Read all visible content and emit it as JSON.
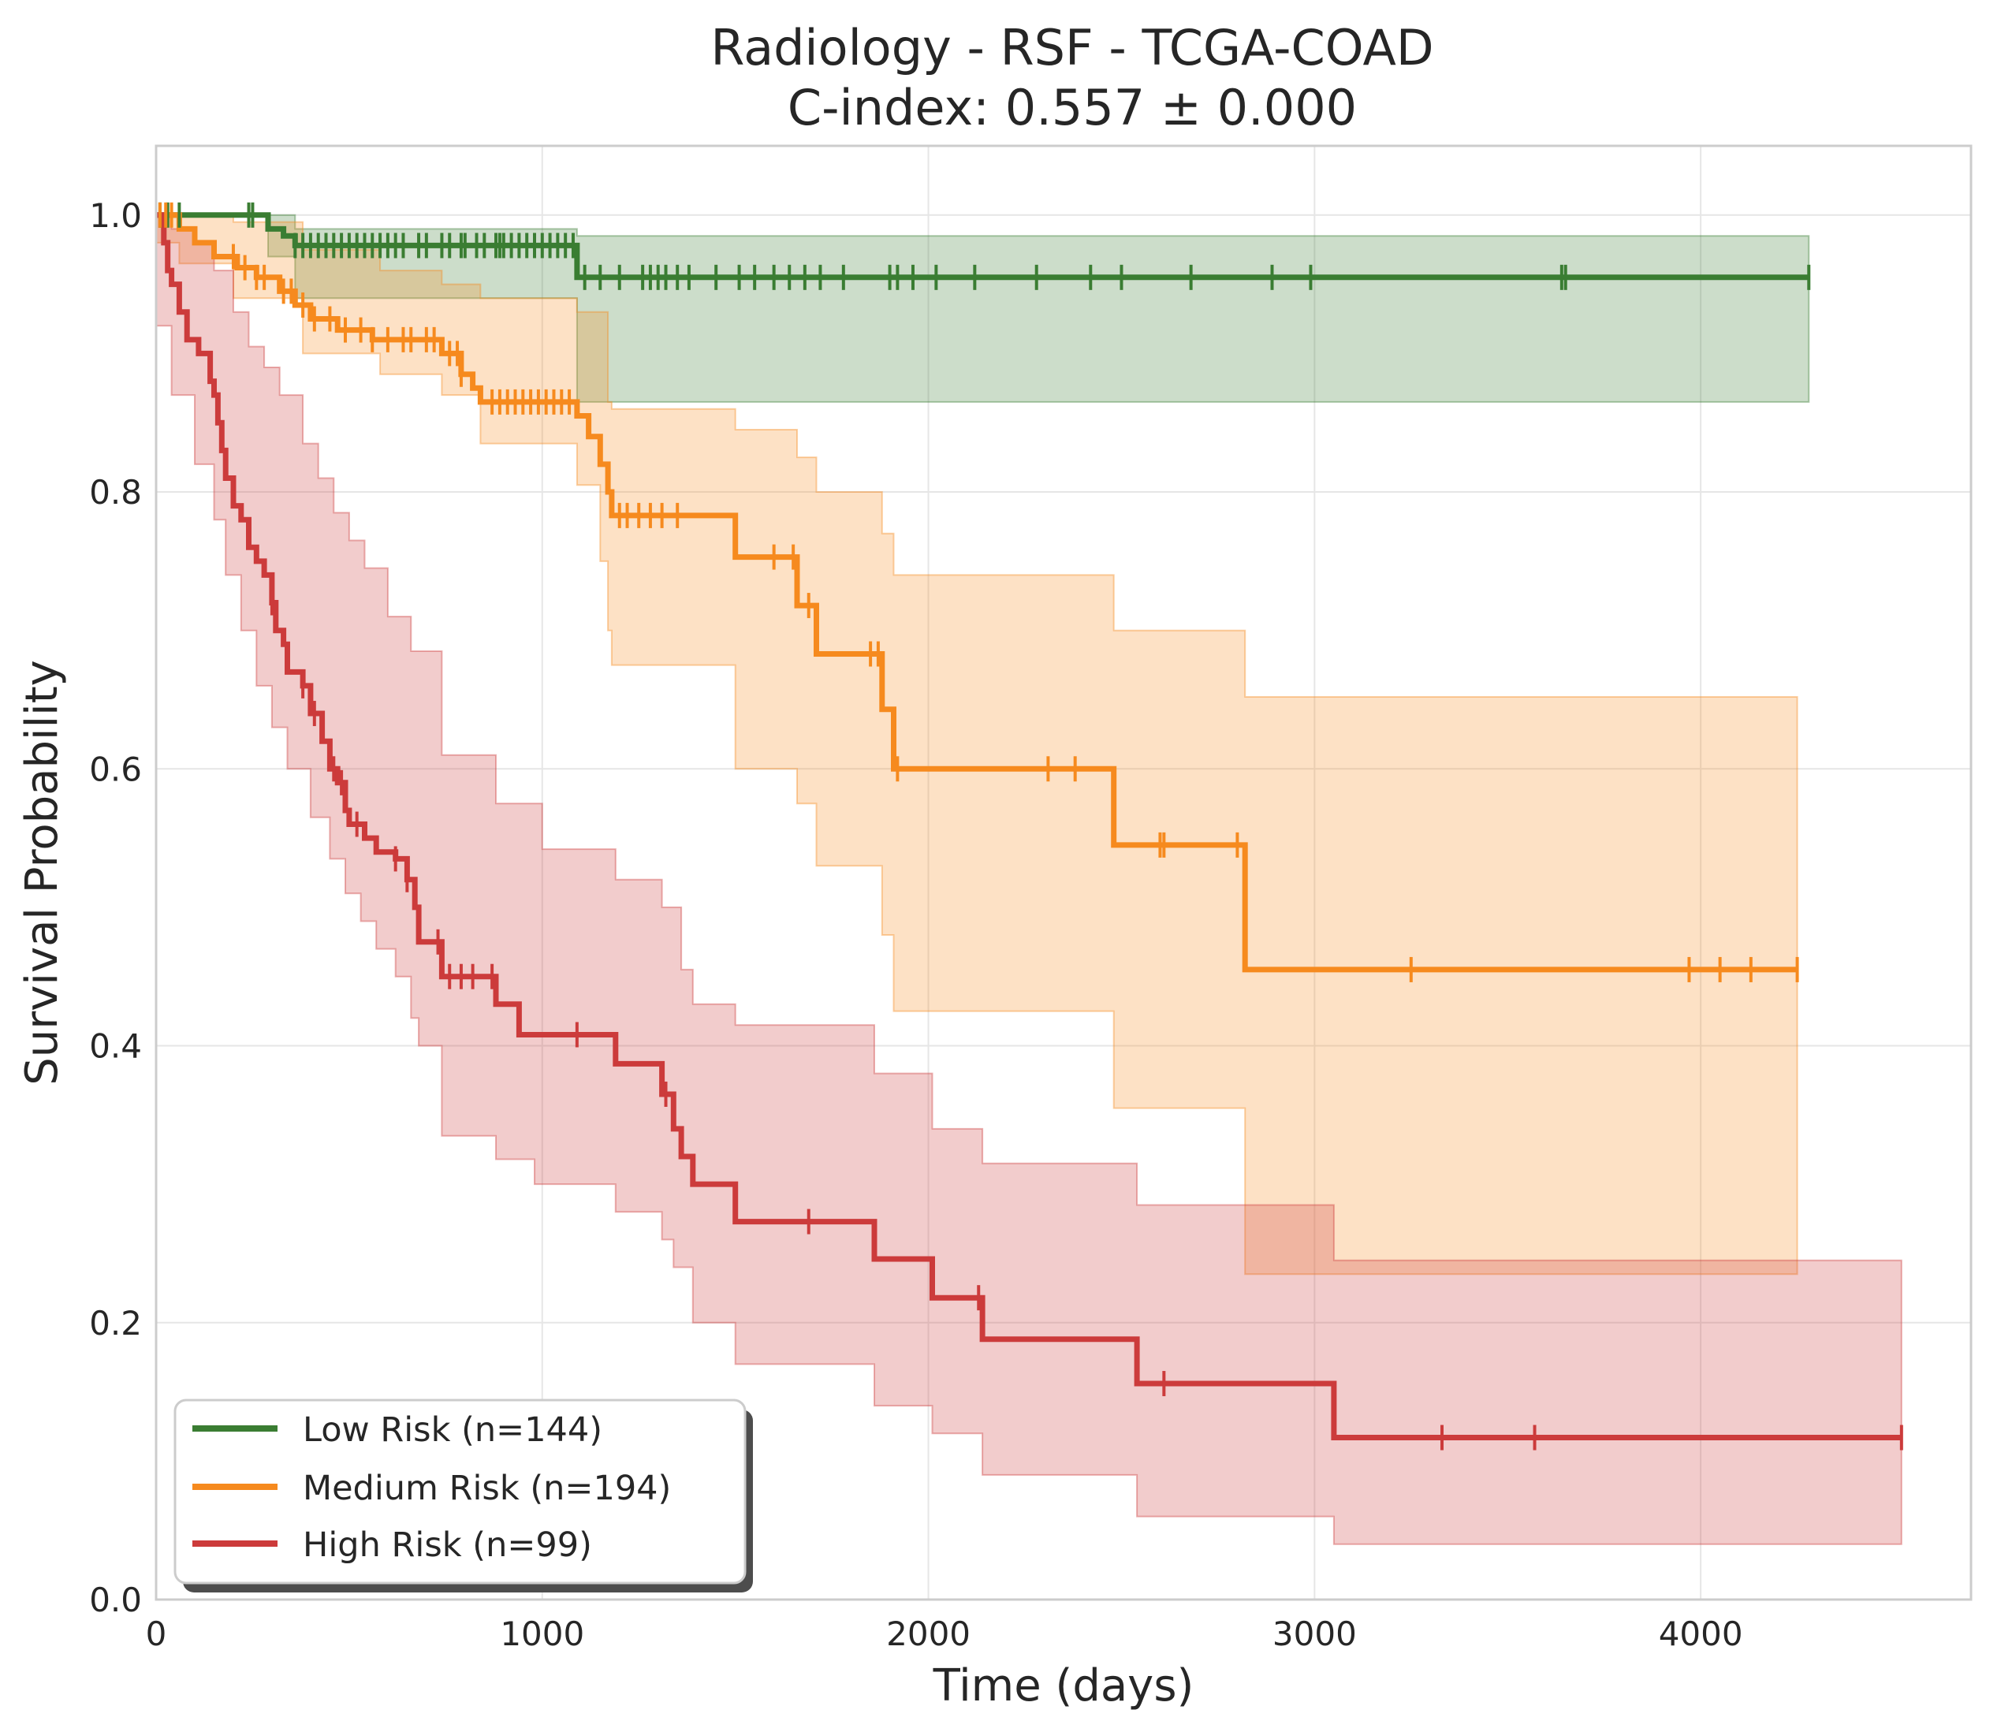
{
  "chart_data": {
    "type": "line",
    "step": "post",
    "title_lines": [
      "Radiology - RSF - TCGA-COAD",
      "C-index: 0.557 ± 0.000"
    ],
    "xlabel": "Time (days)",
    "ylabel": "Survival Probability",
    "xlim": [
      0,
      4700
    ],
    "ylim": [
      0,
      1.05
    ],
    "x_ticks": [
      0,
      1000,
      2000,
      3000,
      4000
    ],
    "x_tick_labels": [
      "0",
      "1000",
      "2000",
      "3000",
      "4000"
    ],
    "y_ticks": [
      0,
      0.2,
      0.4,
      0.6,
      0.8,
      1.0
    ],
    "y_tick_labels": [
      "0.0",
      "0.2",
      "0.4",
      "0.6",
      "0.8",
      "1.0"
    ],
    "grid": true,
    "legend_position": "lower-left",
    "series": [
      {
        "name": "Low Risk (n=144)",
        "color": "#3a7d32",
        "steps": [
          [
            0,
            1.0
          ],
          [
            290,
            0.99
          ],
          [
            330,
            0.985
          ],
          [
            360,
            0.978
          ],
          [
            1090,
            0.955
          ],
          [
            4280,
            0.955
          ]
        ],
        "ci_lower": [
          [
            0,
            1.0
          ],
          [
            290,
            0.97
          ],
          [
            360,
            0.94
          ],
          [
            1090,
            0.865
          ],
          [
            4280,
            0.865
          ]
        ],
        "ci_upper": [
          [
            0,
            1.0
          ],
          [
            360,
            0.99
          ],
          [
            1090,
            0.985
          ],
          [
            4280,
            0.985
          ]
        ],
        "censor_times": [
          10,
          30,
          60,
          240,
          250,
          360,
          380,
          400,
          420,
          440,
          460,
          480,
          500,
          520,
          540,
          560,
          580,
          600,
          620,
          640,
          680,
          700,
          740,
          760,
          790,
          800,
          830,
          850,
          880,
          890,
          900,
          920,
          940,
          960,
          980,
          1000,
          1020,
          1040,
          1060,
          1080,
          1110,
          1150,
          1200,
          1260,
          1280,
          1300,
          1320,
          1350,
          1380,
          1450,
          1510,
          1550,
          1600,
          1640,
          1680,
          1720,
          1780,
          1900,
          1920,
          1960,
          2020,
          2120,
          2280,
          2420,
          2500,
          2680,
          2890,
          2990,
          3640,
          3650,
          4280
        ]
      },
      {
        "name": "Medium Risk (n=194)",
        "color": "#f68a1e",
        "steps": [
          [
            0,
            1.0
          ],
          [
            60,
            0.99
          ],
          [
            100,
            0.98
          ],
          [
            150,
            0.97
          ],
          [
            210,
            0.962
          ],
          [
            260,
            0.955
          ],
          [
            320,
            0.945
          ],
          [
            360,
            0.935
          ],
          [
            400,
            0.925
          ],
          [
            470,
            0.917
          ],
          [
            560,
            0.91
          ],
          [
            740,
            0.9
          ],
          [
            790,
            0.885
          ],
          [
            820,
            0.875
          ],
          [
            840,
            0.865
          ],
          [
            1090,
            0.855
          ],
          [
            1120,
            0.84
          ],
          [
            1150,
            0.82
          ],
          [
            1170,
            0.8
          ],
          [
            1180,
            0.783
          ],
          [
            1500,
            0.753
          ],
          [
            1660,
            0.718
          ],
          [
            1710,
            0.683
          ],
          [
            1880,
            0.643
          ],
          [
            1910,
            0.6
          ],
          [
            2480,
            0.545
          ],
          [
            2820,
            0.455
          ],
          [
            4250,
            0.455
          ]
        ],
        "ci_lower": [
          [
            0,
            0.98
          ],
          [
            60,
            0.965
          ],
          [
            200,
            0.94
          ],
          [
            380,
            0.9
          ],
          [
            580,
            0.885
          ],
          [
            740,
            0.87
          ],
          [
            840,
            0.835
          ],
          [
            1090,
            0.805
          ],
          [
            1150,
            0.75
          ],
          [
            1170,
            0.7
          ],
          [
            1180,
            0.675
          ],
          [
            1500,
            0.6
          ],
          [
            1660,
            0.575
          ],
          [
            1710,
            0.53
          ],
          [
            1880,
            0.48
          ],
          [
            1910,
            0.425
          ],
          [
            2480,
            0.355
          ],
          [
            2820,
            0.235
          ],
          [
            4250,
            0.235
          ]
        ],
        "ci_upper": [
          [
            0,
            1.0
          ],
          [
            200,
            0.995
          ],
          [
            380,
            0.975
          ],
          [
            580,
            0.96
          ],
          [
            740,
            0.95
          ],
          [
            840,
            0.94
          ],
          [
            1090,
            0.93
          ],
          [
            1170,
            0.865
          ],
          [
            1180,
            0.86
          ],
          [
            1500,
            0.845
          ],
          [
            1660,
            0.825
          ],
          [
            1710,
            0.8
          ],
          [
            1880,
            0.77
          ],
          [
            1910,
            0.74
          ],
          [
            2480,
            0.7
          ],
          [
            2820,
            0.652
          ],
          [
            4250,
            0.652
          ]
        ],
        "censor_times": [
          10,
          25,
          40,
          200,
          230,
          260,
          280,
          330,
          350,
          380,
          410,
          450,
          490,
          530,
          560,
          600,
          640,
          660,
          700,
          720,
          760,
          780,
          790,
          870,
          890,
          910,
          930,
          950,
          970,
          990,
          1010,
          1030,
          1050,
          1070,
          1200,
          1220,
          1250,
          1280,
          1310,
          1350,
          1600,
          1650,
          1690,
          1850,
          1870,
          1920,
          2310,
          2380,
          2600,
          2610,
          2800,
          3250,
          3970,
          4050,
          4130,
          4250
        ]
      },
      {
        "name": "High Risk (n=99)",
        "color": "#cc3b3b",
        "steps": [
          [
            0,
            1.0
          ],
          [
            20,
            0.98
          ],
          [
            30,
            0.96
          ],
          [
            40,
            0.95
          ],
          [
            60,
            0.93
          ],
          [
            80,
            0.91
          ],
          [
            110,
            0.9
          ],
          [
            140,
            0.88
          ],
          [
            150,
            0.87
          ],
          [
            160,
            0.85
          ],
          [
            170,
            0.83
          ],
          [
            180,
            0.81
          ],
          [
            200,
            0.79
          ],
          [
            220,
            0.78
          ],
          [
            240,
            0.76
          ],
          [
            260,
            0.75
          ],
          [
            280,
            0.74
          ],
          [
            300,
            0.72
          ],
          [
            310,
            0.7
          ],
          [
            330,
            0.69
          ],
          [
            340,
            0.67
          ],
          [
            380,
            0.66
          ],
          [
            400,
            0.64
          ],
          [
            430,
            0.62
          ],
          [
            450,
            0.6
          ],
          [
            470,
            0.59
          ],
          [
            490,
            0.57
          ],
          [
            500,
            0.56
          ],
          [
            540,
            0.55
          ],
          [
            570,
            0.54
          ],
          [
            620,
            0.535
          ],
          [
            650,
            0.52
          ],
          [
            670,
            0.5
          ],
          [
            680,
            0.475
          ],
          [
            740,
            0.45
          ],
          [
            880,
            0.43
          ],
          [
            940,
            0.408
          ],
          [
            1190,
            0.387
          ],
          [
            1310,
            0.365
          ],
          [
            1340,
            0.34
          ],
          [
            1360,
            0.32
          ],
          [
            1390,
            0.3
          ],
          [
            1500,
            0.273
          ],
          [
            1860,
            0.246
          ],
          [
            2010,
            0.218
          ],
          [
            2140,
            0.188
          ],
          [
            2540,
            0.156
          ],
          [
            3050,
            0.117
          ],
          [
            4520,
            0.117
          ]
        ],
        "ci_lower": [
          [
            0,
            0.92
          ],
          [
            40,
            0.87
          ],
          [
            100,
            0.82
          ],
          [
            150,
            0.78
          ],
          [
            180,
            0.74
          ],
          [
            220,
            0.7
          ],
          [
            260,
            0.66
          ],
          [
            300,
            0.63
          ],
          [
            340,
            0.6
          ],
          [
            400,
            0.565
          ],
          [
            450,
            0.535
          ],
          [
            490,
            0.51
          ],
          [
            530,
            0.49
          ],
          [
            570,
            0.47
          ],
          [
            620,
            0.45
          ],
          [
            660,
            0.42
          ],
          [
            680,
            0.4
          ],
          [
            740,
            0.335
          ],
          [
            880,
            0.318
          ],
          [
            980,
            0.3
          ],
          [
            1190,
            0.28
          ],
          [
            1310,
            0.26
          ],
          [
            1340,
            0.24
          ],
          [
            1390,
            0.2
          ],
          [
            1500,
            0.17
          ],
          [
            1860,
            0.14
          ],
          [
            2010,
            0.12
          ],
          [
            2140,
            0.09
          ],
          [
            2540,
            0.06
          ],
          [
            3050,
            0.04
          ],
          [
            4520,
            0.04
          ]
        ],
        "ci_upper": [
          [
            0,
            1.0
          ],
          [
            40,
            0.99
          ],
          [
            100,
            0.98
          ],
          [
            150,
            0.96
          ],
          [
            200,
            0.93
          ],
          [
            240,
            0.905
          ],
          [
            280,
            0.89
          ],
          [
            320,
            0.87
          ],
          [
            380,
            0.835
          ],
          [
            420,
            0.81
          ],
          [
            460,
            0.785
          ],
          [
            500,
            0.765
          ],
          [
            540,
            0.745
          ],
          [
            600,
            0.71
          ],
          [
            660,
            0.685
          ],
          [
            740,
            0.61
          ],
          [
            880,
            0.575
          ],
          [
            1000,
            0.542
          ],
          [
            1190,
            0.52
          ],
          [
            1310,
            0.5
          ],
          [
            1360,
            0.455
          ],
          [
            1390,
            0.43
          ],
          [
            1500,
            0.415
          ],
          [
            1860,
            0.38
          ],
          [
            2010,
            0.34
          ],
          [
            2140,
            0.315
          ],
          [
            2540,
            0.285
          ],
          [
            3050,
            0.245
          ],
          [
            4520,
            0.245
          ]
        ],
        "censor_times": [
          300,
          380,
          410,
          460,
          480,
          520,
          620,
          650,
          730,
          760,
          790,
          820,
          870,
          1090,
          1320,
          1690,
          2130,
          2610,
          3330,
          3570,
          4520
        ]
      }
    ]
  }
}
